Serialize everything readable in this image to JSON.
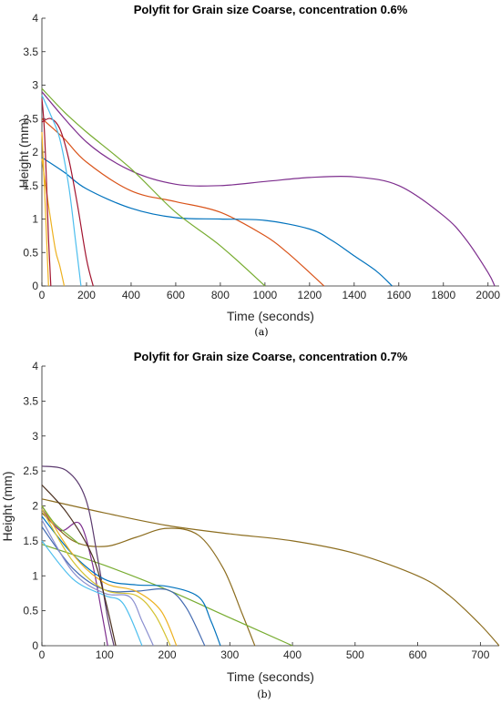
{
  "chart_data": [
    {
      "type": "line",
      "panel_label": "(a)",
      "title": "Polyfit for Grain size Coarse, concentration 0.6%",
      "xlabel": "Time (seconds)",
      "ylabel": "Height (mm)",
      "xlim": [
        0,
        2050
      ],
      "ylim": [
        0,
        4
      ],
      "xticks": [
        0,
        200,
        400,
        600,
        800,
        1000,
        1200,
        1400,
        1600,
        1800,
        2000
      ],
      "yticks": [
        0,
        0.5,
        1,
        1.5,
        2,
        2.5,
        3,
        3.5,
        4
      ],
      "grid": false,
      "series": [
        {
          "color": "#7E2F8E",
          "x": [
            0,
            200,
            400,
            600,
            800,
            1000,
            1200,
            1400,
            1600,
            1800,
            1900,
            2000,
            2030
          ],
          "y": [
            2.9,
            2.15,
            1.72,
            1.52,
            1.5,
            1.56,
            1.62,
            1.63,
            1.5,
            1.05,
            0.7,
            0.2,
            0
          ]
        },
        {
          "color": "#D95319",
          "x": [
            0,
            100,
            200,
            400,
            600,
            800,
            1000,
            1100,
            1200,
            1265
          ],
          "y": [
            2.5,
            2.2,
            1.85,
            1.42,
            1.26,
            1.1,
            0.75,
            0.5,
            0.2,
            0
          ]
        },
        {
          "color": "#0072BD",
          "x": [
            0,
            100,
            200,
            400,
            600,
            800,
            1000,
            1200,
            1300,
            1400,
            1500,
            1570
          ],
          "y": [
            1.92,
            1.7,
            1.45,
            1.16,
            1.02,
            1.0,
            0.98,
            0.85,
            0.68,
            0.45,
            0.22,
            0
          ]
        },
        {
          "color": "#77AC30",
          "x": [
            0,
            100,
            200,
            400,
            600,
            800,
            1000
          ],
          "y": [
            2.95,
            2.6,
            2.3,
            1.75,
            1.1,
            0.6,
            0
          ]
        },
        {
          "color": "#A2142F",
          "x": [
            0,
            40,
            80,
            120,
            160,
            200,
            230
          ],
          "y": [
            2.45,
            2.5,
            2.35,
            1.9,
            1.2,
            0.4,
            0
          ]
        },
        {
          "color": "#4DBEEE",
          "x": [
            0,
            40,
            80,
            120,
            150,
            175
          ],
          "y": [
            2.85,
            2.55,
            2.2,
            1.5,
            0.7,
            0
          ]
        },
        {
          "color": "#EDB120",
          "x": [
            0,
            30,
            60,
            80,
            100
          ],
          "y": [
            1.9,
            1.2,
            0.55,
            0.3,
            0
          ]
        },
        {
          "color": "#A2142F",
          "x": [
            0,
            10,
            20,
            30,
            40
          ],
          "y": [
            2.8,
            2.4,
            1.6,
            0.7,
            0
          ]
        },
        {
          "color": "#EDB120",
          "x": [
            0,
            10,
            20,
            30
          ],
          "y": [
            2.3,
            1.6,
            0.8,
            0
          ]
        }
      ]
    },
    {
      "type": "line",
      "panel_label": "(b)",
      "title": "Polyfit for Grain size Coarse, concentration 0.7%",
      "xlabel": "Time (seconds)",
      "ylabel": "Height (mm)",
      "xlim": [
        0,
        730
      ],
      "ylim": [
        0,
        4
      ],
      "xticks": [
        0,
        100,
        200,
        300,
        400,
        500,
        600,
        700
      ],
      "yticks": [
        0,
        0.5,
        1,
        1.5,
        2,
        2.5,
        3,
        3.5,
        4
      ],
      "grid": false,
      "series": [
        {
          "color": "#8C6D1F",
          "x": [
            0,
            100,
            200,
            300,
            400,
            500,
            600,
            650,
            700,
            730
          ],
          "y": [
            2.1,
            1.9,
            1.72,
            1.6,
            1.5,
            1.32,
            1.0,
            0.72,
            0.3,
            0
          ]
        },
        {
          "color": "#8C6D1F",
          "x": [
            0,
            50,
            100,
            150,
            200,
            250,
            290,
            320,
            340
          ],
          "y": [
            1.9,
            1.5,
            1.42,
            1.55,
            1.68,
            1.58,
            1.1,
            0.45,
            0
          ]
        },
        {
          "color": "#77AC30",
          "x": [
            0,
            100,
            200,
            300,
            400
          ],
          "y": [
            1.45,
            1.15,
            0.8,
            0.4,
            0
          ]
        },
        {
          "color": "#5B3A6E",
          "x": [
            0,
            40,
            70,
            90,
            105,
            115
          ],
          "y": [
            2.57,
            2.5,
            2.1,
            1.2,
            0.4,
            0
          ]
        },
        {
          "color": "#7E2F8E",
          "x": [
            0,
            30,
            60,
            80,
            95,
            105
          ],
          "y": [
            1.95,
            1.65,
            1.75,
            1.2,
            0.5,
            0
          ]
        },
        {
          "color": "#0072BD",
          "x": [
            0,
            50,
            100,
            150,
            200,
            250,
            270,
            285
          ],
          "y": [
            1.85,
            1.3,
            0.95,
            0.87,
            0.85,
            0.7,
            0.35,
            0
          ]
        },
        {
          "color": "#4169B0",
          "x": [
            0,
            50,
            100,
            150,
            200,
            230,
            260
          ],
          "y": [
            1.7,
            1.1,
            0.8,
            0.78,
            0.8,
            0.55,
            0
          ]
        },
        {
          "color": "#EDB120",
          "x": [
            0,
            50,
            100,
            150,
            190,
            215
          ],
          "y": [
            2.0,
            1.3,
            0.9,
            0.78,
            0.5,
            0
          ]
        },
        {
          "color": "#D4C232",
          "x": [
            0,
            50,
            100,
            150,
            180,
            205
          ],
          "y": [
            1.95,
            1.2,
            0.8,
            0.72,
            0.45,
            0
          ]
        },
        {
          "color": "#8A8FCF",
          "x": [
            0,
            50,
            100,
            140,
            160,
            178
          ],
          "y": [
            1.8,
            1.05,
            0.75,
            0.7,
            0.35,
            0
          ]
        },
        {
          "color": "#4DBEEE",
          "x": [
            0,
            50,
            100,
            130,
            160
          ],
          "y": [
            1.5,
            0.95,
            0.72,
            0.6,
            0
          ]
        },
        {
          "color": "#4B3020",
          "x": [
            0,
            40,
            80,
            100,
            118
          ],
          "y": [
            2.3,
            1.9,
            1.3,
            0.7,
            0
          ]
        },
        {
          "color": "#77AC30",
          "x": [
            0,
            20,
            40,
            60
          ],
          "y": [
            2.0,
            1.75,
            1.6,
            1.45
          ]
        }
      ]
    }
  ]
}
